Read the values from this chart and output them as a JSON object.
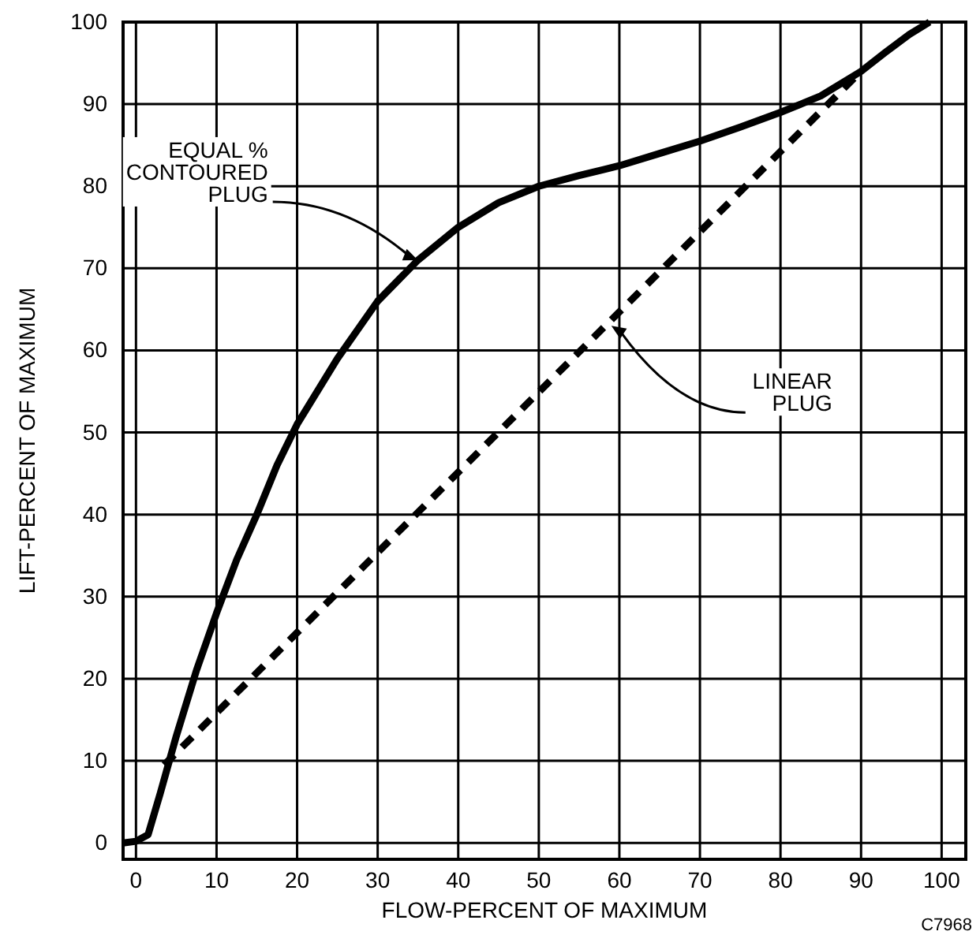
{
  "chart_data": {
    "type": "line",
    "xlabel": "FLOW-PERCENT OF MAXIMUM",
    "ylabel": "LIFT-PERCENT OF MAXIMUM",
    "xlim": [
      -1.6,
      103
    ],
    "ylim": [
      -2,
      100
    ],
    "xticks": [
      0,
      10,
      20,
      30,
      40,
      50,
      60,
      70,
      80,
      90,
      100
    ],
    "yticks": [
      0,
      10,
      20,
      30,
      40,
      50,
      60,
      70,
      80,
      90,
      100
    ],
    "grid": true,
    "series": [
      {
        "color": "#000000",
        "line_style": "solid",
        "x": [
          -1.6,
          0,
          1.5,
          3,
          5,
          7.5,
          10,
          12.5,
          15,
          17.5,
          20,
          25,
          30,
          35,
          40,
          45,
          50,
          55,
          60,
          65,
          70,
          75,
          80,
          85,
          90,
          93,
          96,
          98.5
        ],
        "values": [
          0,
          0.2,
          1,
          6,
          13,
          21,
          28,
          34.5,
          40,
          46,
          51,
          59,
          66,
          71,
          75,
          78,
          80,
          81.3,
          82.5,
          84,
          85.5,
          87.2,
          89,
          91,
          94,
          96.3,
          98.5,
          100
        ]
      },
      {
        "color": "#000000",
        "line_style": "dashed",
        "x": [
          3.5,
          90
        ],
        "values": [
          9.5,
          94
        ]
      }
    ],
    "annotations": [
      {
        "text": "EQUAL %\nCONTOURED\nPLUG",
        "x": 35,
        "y": 71
      },
      {
        "text": "LINEAR\nPLUG",
        "x": 59,
        "y": 63
      },
      "C7968"
    ]
  }
}
